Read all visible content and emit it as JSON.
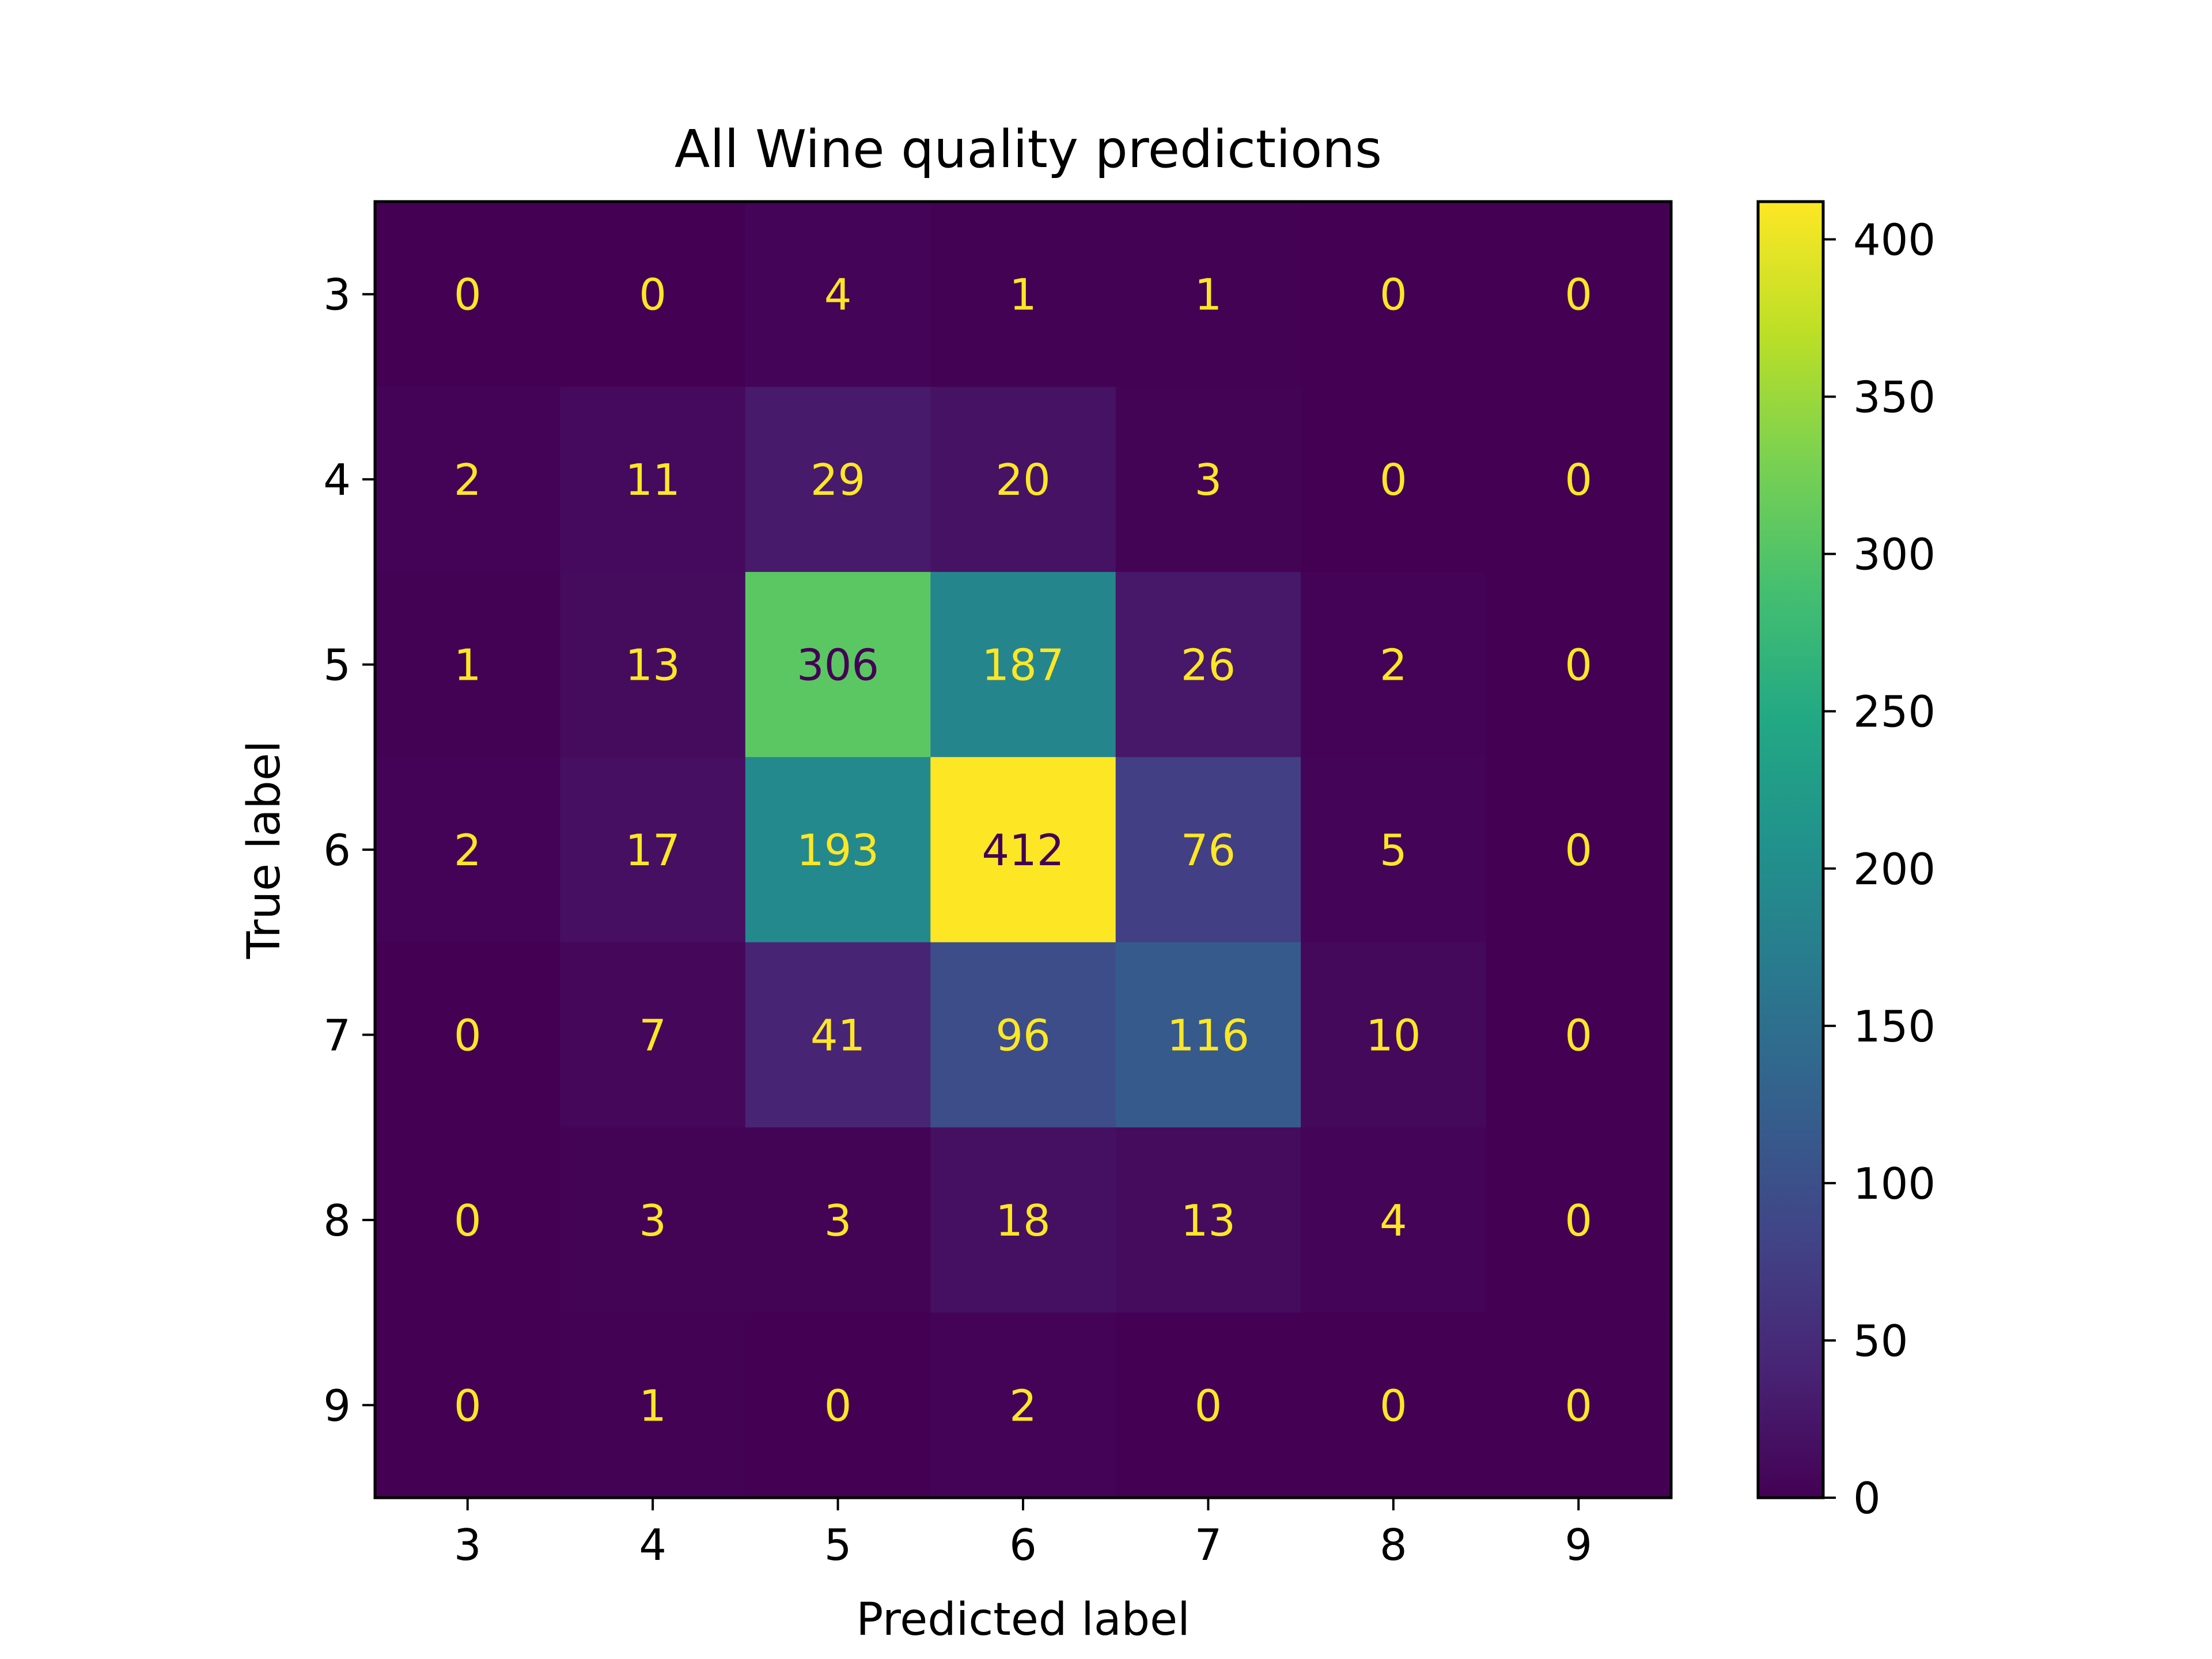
{
  "chart_data": {
    "type": "heatmap",
    "title": "All Wine quality predictions",
    "xlabel": "Predicted label",
    "ylabel": "True label",
    "x_categories": [
      "3",
      "4",
      "5",
      "6",
      "7",
      "8",
      "9"
    ],
    "y_categories": [
      "3",
      "4",
      "5",
      "6",
      "7",
      "8",
      "9"
    ],
    "values": [
      [
        0,
        0,
        4,
        1,
        1,
        0,
        0
      ],
      [
        2,
        11,
        29,
        20,
        3,
        0,
        0
      ],
      [
        1,
        13,
        306,
        187,
        26,
        2,
        0
      ],
      [
        2,
        17,
        193,
        412,
        76,
        5,
        0
      ],
      [
        0,
        7,
        41,
        96,
        116,
        10,
        0
      ],
      [
        0,
        3,
        3,
        18,
        13,
        4,
        0
      ],
      [
        0,
        1,
        0,
        2,
        0,
        0,
        0
      ]
    ],
    "colormap": "viridis",
    "vmin": 0,
    "vmax": 412,
    "colorbar_ticks": [
      0,
      50,
      100,
      150,
      200,
      250,
      300,
      350,
      400
    ],
    "label_color_light": "#fde725",
    "label_color_dark": "#440154",
    "grid": false
  }
}
